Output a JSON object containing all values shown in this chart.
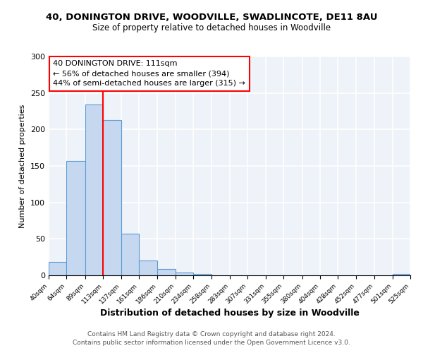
{
  "title": "40, DONINGTON DRIVE, WOODVILLE, SWADLINCOTE, DE11 8AU",
  "subtitle": "Size of property relative to detached houses in Woodville",
  "xlabel": "Distribution of detached houses by size in Woodville",
  "ylabel": "Number of detached properties",
  "bin_edges": [
    40,
    64,
    89,
    113,
    137,
    161,
    186,
    210,
    234,
    258,
    283,
    307,
    331,
    355,
    380,
    404,
    428,
    452,
    477,
    501,
    525
  ],
  "bar_heights": [
    18,
    157,
    234,
    213,
    57,
    20,
    9,
    4,
    2,
    0,
    0,
    0,
    0,
    0,
    0,
    0,
    0,
    0,
    0,
    2
  ],
  "bar_color": "#c5d8f0",
  "bar_edge_color": "#5b9bd5",
  "vline_x": 113,
  "vline_color": "red",
  "annotation_text": "40 DONINGTON DRIVE: 111sqm\n← 56% of detached houses are smaller (394)\n44% of semi-detached houses are larger (315) →",
  "annotation_box_color": "white",
  "annotation_box_edge": "red",
  "ylim": [
    0,
    300
  ],
  "yticks": [
    0,
    50,
    100,
    150,
    200,
    250,
    300
  ],
  "tick_labels": [
    "40sqm",
    "64sqm",
    "89sqm",
    "113sqm",
    "137sqm",
    "161sqm",
    "186sqm",
    "210sqm",
    "234sqm",
    "258sqm",
    "283sqm",
    "307sqm",
    "331sqm",
    "355sqm",
    "380sqm",
    "404sqm",
    "428sqm",
    "452sqm",
    "477sqm",
    "501sqm",
    "525sqm"
  ],
  "footer1": "Contains HM Land Registry data © Crown copyright and database right 2024.",
  "footer2": "Contains public sector information licensed under the Open Government Licence v3.0.",
  "bg_color": "#eef2f9",
  "grid_color": "white",
  "fig_bg": "white",
  "title_fontsize": 9.5,
  "subtitle_fontsize": 8.5,
  "ylabel_fontsize": 8,
  "xlabel_fontsize": 9,
  "tick_fontsize": 6.5,
  "annot_fontsize": 8,
  "footer_fontsize": 6.5
}
